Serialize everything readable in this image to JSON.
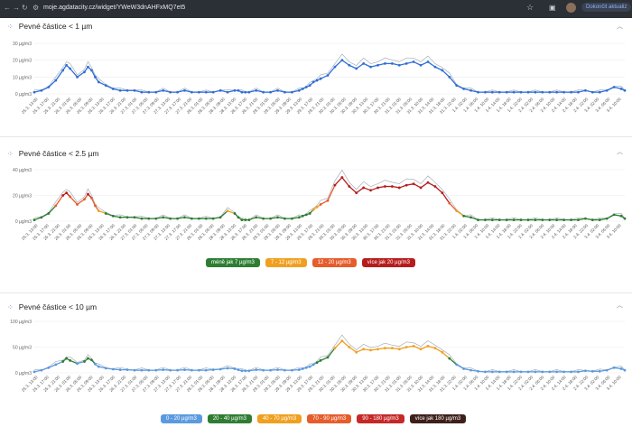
{
  "browser": {
    "url": "moje.agdatacity.cz/widget/YWeW3dnAHFxMQ7et5",
    "update_label": "Dokončit aktualiz"
  },
  "x_labels": [
    "25.3. 13:00",
    "25.3. 17:00",
    "25.3. 21:00",
    "26.3. 01:00",
    "26.3. 05:00",
    "26.3. 09:00",
    "26.3. 13:00",
    "26.3. 17:00",
    "26.3. 21:00",
    "27.3. 01:00",
    "27.3. 05:00",
    "27.3. 09:00",
    "27.3. 13:00",
    "27.3. 17:00",
    "27.3. 21:00",
    "28.3. 01:00",
    "28.3. 05:00",
    "28.3. 09:00",
    "28.3. 13:00",
    "28.3. 17:00",
    "28.3. 21:00",
    "29.3. 01:00",
    "29.3. 05:00",
    "29.3. 09:00",
    "29.3. 13:00",
    "29.3. 17:00",
    "29.3. 21:00",
    "30.3. 01:00",
    "30.3. 05:00",
    "30.3. 09:00",
    "30.3. 13:00",
    "30.3. 17:00",
    "30.3. 21:00",
    "31.3. 01:00",
    "31.3. 05:00",
    "31.3. 10:00",
    "31.3. 14:00",
    "31.3. 18:00",
    "31.3. 22:00",
    "1.4. 02:00",
    "1.4. 06:00",
    "1.4. 10:00",
    "1.4. 14:00",
    "1.4. 18:00",
    "1.4. 22:00",
    "2.4. 02:00",
    "2.4. 06:00",
    "2.4. 10:00",
    "2.4. 14:00",
    "2.4. 18:00",
    "2.4. 22:00",
    "3.4. 02:00",
    "3.4. 06:00",
    "3.4. 10:00"
  ],
  "chart_data": [
    {
      "type": "line",
      "title": "Pevné částice < 1 µm",
      "yticks": [
        "0 µg/m3",
        "10 µg/m3",
        "20 µg/m3",
        "30 µg/m3"
      ],
      "ylim": [
        0,
        30
      ],
      "x": [
        0,
        2,
        4,
        6,
        8,
        9,
        10,
        12,
        14,
        15,
        16,
        17,
        18,
        20,
        22,
        24,
        26,
        28,
        30,
        32,
        34,
        36,
        38,
        40,
        42,
        44,
        46,
        48,
        50,
        52,
        54,
        56,
        57,
        58,
        59,
        60,
        62,
        64,
        66,
        68,
        70,
        72,
        74,
        75,
        76,
        77,
        78,
        79,
        80,
        82,
        84,
        86,
        88,
        90,
        92,
        94,
        96,
        98,
        100,
        102,
        104,
        106,
        108,
        110,
        112,
        114,
        116,
        118,
        120,
        122,
        124,
        126,
        128,
        130,
        132,
        134,
        136,
        138,
        140,
        142,
        144,
        146,
        148,
        150,
        152,
        154,
        156,
        158,
        160,
        162,
        164,
        165
      ],
      "values": [
        1,
        2,
        4,
        8,
        14,
        17,
        15,
        10,
        13,
        16,
        14,
        10,
        7,
        5,
        3,
        2,
        2,
        2,
        1,
        1,
        1,
        2,
        1,
        1,
        2,
        1,
        1,
        1,
        1,
        2,
        1,
        2,
        2,
        1,
        1,
        1,
        2,
        1,
        1,
        2,
        1,
        1,
        2,
        3,
        4,
        5,
        7,
        8,
        9,
        11,
        16,
        20,
        17,
        15,
        18,
        16,
        17,
        18,
        18,
        17,
        18,
        19,
        17,
        19,
        16,
        14,
        10,
        5,
        3,
        2,
        1,
        1,
        1,
        1,
        1,
        1,
        1,
        1,
        1,
        1,
        1,
        1,
        1,
        1,
        1,
        2,
        1,
        1,
        2,
        4,
        3,
        2
      ],
      "series_color": "#2f6fd6",
      "legend": []
    },
    {
      "type": "line",
      "title": "Pevné částice < 2.5 µm",
      "yticks": [
        "0 µg/m3",
        "20 µg/m3",
        "40 µg/m3"
      ],
      "ylim": [
        0,
        40
      ],
      "x": [
        0,
        2,
        4,
        6,
        8,
        9,
        10,
        12,
        14,
        15,
        16,
        17,
        18,
        20,
        22,
        24,
        26,
        28,
        30,
        32,
        34,
        36,
        38,
        40,
        42,
        44,
        46,
        48,
        50,
        52,
        54,
        56,
        57,
        58,
        59,
        60,
        62,
        64,
        66,
        68,
        70,
        72,
        74,
        75,
        76,
        77,
        78,
        79,
        80,
        82,
        84,
        86,
        88,
        90,
        92,
        94,
        96,
        98,
        100,
        102,
        104,
        106,
        108,
        110,
        112,
        114,
        116,
        118,
        120,
        122,
        124,
        126,
        128,
        130,
        132,
        134,
        136,
        138,
        140,
        142,
        144,
        146,
        148,
        150,
        152,
        154,
        156,
        158,
        160,
        162,
        164,
        165
      ],
      "values": [
        1,
        3,
        6,
        12,
        20,
        22,
        19,
        13,
        17,
        21,
        18,
        12,
        8,
        6,
        4,
        3,
        3,
        3,
        2,
        2,
        2,
        3,
        2,
        2,
        3,
        2,
        2,
        2,
        2,
        3,
        8,
        6,
        3,
        1,
        1,
        1,
        3,
        2,
        2,
        3,
        2,
        2,
        3,
        4,
        5,
        6,
        9,
        11,
        13,
        16,
        28,
        34,
        27,
        22,
        26,
        24,
        26,
        27,
        27,
        26,
        28,
        29,
        26,
        30,
        27,
        22,
        14,
        8,
        4,
        3,
        1,
        1,
        1,
        1,
        1,
        1,
        1,
        1,
        1,
        1,
        1,
        1,
        1,
        1,
        1,
        2,
        1,
        1,
        2,
        5,
        4,
        2
      ],
      "legend": [
        {
          "label": "méně jak 7 µg/m3",
          "color": "#2e7d32"
        },
        {
          "label": "7 - 12 µg/m3",
          "color": "#f0a020"
        },
        {
          "label": "12 - 20 µg/m3",
          "color": "#e65c2b"
        },
        {
          "label": "více jak 20 µg/m3",
          "color": "#b71c1c"
        }
      ]
    },
    {
      "type": "line",
      "title": "Pevné částice < 10 µm",
      "yticks": [
        "0 µg/m3",
        "50 µg/m3",
        "100 µg/m3"
      ],
      "ylim": [
        0,
        100
      ],
      "x": [
        0,
        2,
        4,
        6,
        8,
        9,
        10,
        12,
        14,
        15,
        16,
        17,
        18,
        20,
        22,
        24,
        26,
        28,
        30,
        32,
        34,
        36,
        38,
        40,
        42,
        44,
        46,
        48,
        50,
        52,
        54,
        56,
        57,
        58,
        59,
        60,
        62,
        64,
        66,
        68,
        70,
        72,
        74,
        75,
        76,
        77,
        78,
        79,
        80,
        82,
        84,
        86,
        88,
        90,
        92,
        94,
        96,
        98,
        100,
        102,
        104,
        106,
        108,
        110,
        112,
        114,
        116,
        118,
        120,
        122,
        124,
        126,
        128,
        130,
        132,
        134,
        136,
        138,
        140,
        142,
        144,
        146,
        148,
        150,
        152,
        154,
        156,
        158,
        160,
        162,
        164,
        165
      ],
      "values": [
        2,
        5,
        10,
        16,
        22,
        28,
        24,
        18,
        22,
        28,
        25,
        17,
        12,
        9,
        7,
        6,
        6,
        5,
        5,
        5,
        5,
        6,
        5,
        5,
        6,
        5,
        5,
        5,
        6,
        7,
        9,
        8,
        6,
        4,
        4,
        4,
        6,
        5,
        5,
        6,
        5,
        5,
        6,
        8,
        10,
        12,
        16,
        20,
        24,
        30,
        48,
        62,
        50,
        40,
        46,
        44,
        46,
        48,
        48,
        46,
        50,
        52,
        46,
        52,
        48,
        40,
        28,
        16,
        8,
        5,
        3,
        2,
        2,
        2,
        2,
        2,
        2,
        2,
        2,
        2,
        2,
        2,
        2,
        2,
        2,
        4,
        3,
        3,
        5,
        10,
        8,
        5
      ],
      "legend": [
        {
          "label": "0 - 20 µg/m3",
          "color": "#5b9ae0"
        },
        {
          "label": "20 - 40 µg/m3",
          "color": "#2e7d32"
        },
        {
          "label": "40 - 70 µg/m3",
          "color": "#f0a020"
        },
        {
          "label": "70 - 90 µg/m3",
          "color": "#e65c2b"
        },
        {
          "label": "90 - 180 µg/m3",
          "color": "#c62828"
        },
        {
          "label": "více jak 180 µg/m3",
          "color": "#3e1f1a"
        }
      ]
    }
  ]
}
